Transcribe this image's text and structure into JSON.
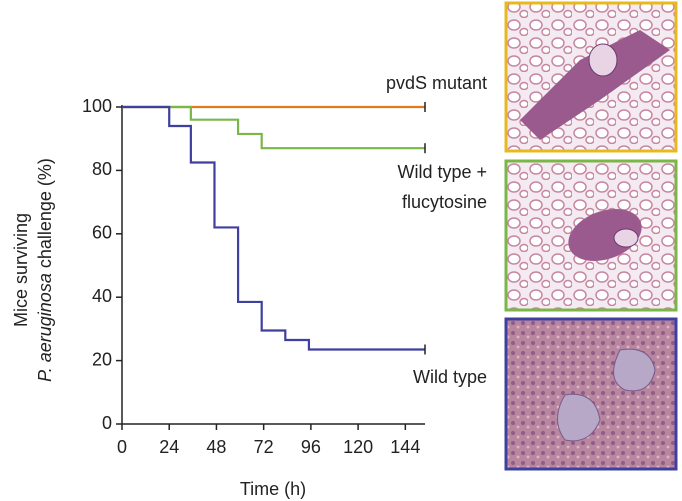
{
  "chart_data": {
    "type": "step",
    "xlabel": "Time (h)",
    "ylabel": {
      "line1": "Mice surviving",
      "line2_italic": "P. aeruginosa",
      "line2": "challenge (%)"
    },
    "xlim": [
      0,
      154
    ],
    "xticks": [
      0,
      24,
      48,
      72,
      96,
      120,
      144
    ],
    "ylim": [
      0,
      100
    ],
    "yticks": [
      0,
      20,
      40,
      60,
      80,
      100
    ],
    "series": [
      {
        "label_lines": [
          "pvdS mutant"
        ],
        "color": "#e07b1a",
        "x": [
          0,
          154
        ],
        "values": [
          100,
          100
        ]
      },
      {
        "label_lines": [
          "Wild type +",
          "flucytosine"
        ],
        "color": "#7ab648",
        "x": [
          0,
          35,
          59,
          71,
          154
        ],
        "values": [
          100,
          96,
          91.5,
          87,
          87
        ]
      },
      {
        "label_lines": [
          "Wild type"
        ],
        "color": "#3f3fa0",
        "x": [
          0,
          24,
          35,
          47,
          59,
          71,
          83,
          95,
          154
        ],
        "values": [
          100,
          94,
          82.5,
          62,
          38.5,
          29.5,
          26.5,
          23.5,
          23.5
        ]
      }
    ]
  }
}
